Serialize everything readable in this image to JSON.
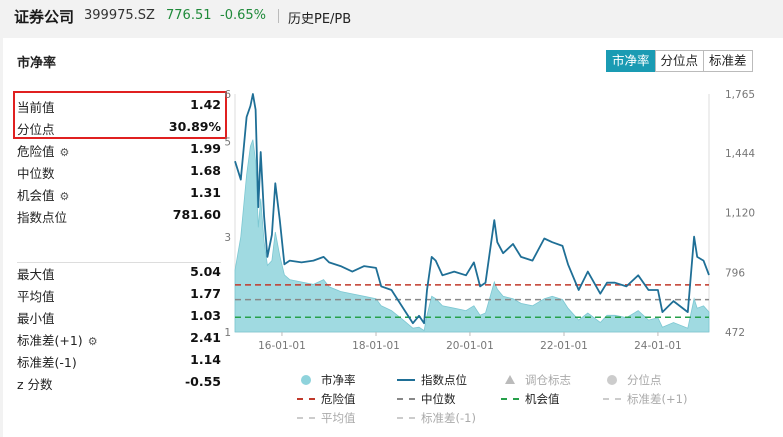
{
  "header": {
    "name": "证券公司",
    "code": "399975.SZ",
    "price": "776.51",
    "change": "-0.65%",
    "link": "历史PE/PB"
  },
  "card": {
    "title": "市净率",
    "tabs": [
      "市净率",
      "分位点",
      "标准差"
    ]
  },
  "stats": {
    "current_label": "当前值",
    "current_value": "1.42",
    "percentile_label": "分位点",
    "percentile_value": "30.89%",
    "danger_label": "危险值",
    "danger_value": "1.99",
    "median_label": "中位数",
    "median_value": "1.68",
    "chance_label": "机会值",
    "chance_value": "1.31",
    "index_label": "指数点位",
    "index_value": "781.60",
    "max_label": "最大值",
    "max_value": "5.04",
    "avg_label": "平均值",
    "avg_value": "1.77",
    "min_label": "最小值",
    "min_value": "1.03",
    "std_plus_label": "标准差(+1)",
    "std_plus_value": "2.41",
    "std_minus_label": "标准差(-1)",
    "std_minus_value": "1.14",
    "z_label": "z 分数",
    "z_value": "-0.55"
  },
  "legend": {
    "pb": "市净率",
    "index": "指数点位",
    "adjust": "调仓标志",
    "percentile": "分位点",
    "danger": "危险值",
    "median": "中位数",
    "chance": "机会值",
    "std_plus": "标准差(+1)",
    "avg": "平均值",
    "std_minus": "标准差(-1)"
  },
  "colors": {
    "accent": "#1a9bb3",
    "pb_fill": "#8fd3dc",
    "index_line": "#1f6f96",
    "danger": "#c0392b",
    "median": "#888888",
    "chance": "#27a04a",
    "price_down": "#1f8a3a",
    "highlight": "#e02020"
  },
  "chart_data": {
    "type": "area",
    "x_ticks": [
      "16-01-01",
      "18-01-01",
      "20-01-01",
      "22-01-01",
      "24-01-01"
    ],
    "left_axis_ticks": [
      "1",
      "3",
      "5",
      "6"
    ],
    "right_axis_ticks": [
      "472",
      "796",
      "1,120",
      "1,444",
      "1,765"
    ],
    "left_range": [
      1,
      6
    ],
    "right_range": [
      472,
      1765
    ],
    "pb_series": [
      [
        "15-01-01",
        2.3
      ],
      [
        "15-02-15",
        3.0
      ],
      [
        "15-04-01",
        4.3
      ],
      [
        "15-05-01",
        4.9
      ],
      [
        "15-05-20",
        5.04
      ],
      [
        "15-06-10",
        4.6
      ],
      [
        "15-07-01",
        3.2
      ],
      [
        "15-07-20",
        3.8
      ],
      [
        "15-08-15",
        2.9
      ],
      [
        "15-09-10",
        2.4
      ],
      [
        "15-10-15",
        2.5
      ],
      [
        "15-11-10",
        3.1
      ],
      [
        "15-12-15",
        2.6
      ],
      [
        "16-01-20",
        2.2
      ],
      [
        "16-03-01",
        2.1
      ],
      [
        "16-06-01",
        2.05
      ],
      [
        "16-09-01",
        2.0
      ],
      [
        "16-11-20",
        2.1
      ],
      [
        "17-01-01",
        1.95
      ],
      [
        "17-04-01",
        1.85
      ],
      [
        "17-07-01",
        1.8
      ],
      [
        "17-10-01",
        1.75
      ],
      [
        "18-01-01",
        1.7
      ],
      [
        "18-02-10",
        1.55
      ],
      [
        "18-05-01",
        1.45
      ],
      [
        "18-08-01",
        1.25
      ],
      [
        "18-10-15",
        1.08
      ],
      [
        "18-12-01",
        1.1
      ],
      [
        "19-01-10",
        1.03
      ],
      [
        "19-02-01",
        1.35
      ],
      [
        "19-03-10",
        1.75
      ],
      [
        "19-04-10",
        1.7
      ],
      [
        "19-06-01",
        1.55
      ],
      [
        "19-09-01",
        1.5
      ],
      [
        "19-12-01",
        1.45
      ],
      [
        "20-02-01",
        1.55
      ],
      [
        "20-03-20",
        1.35
      ],
      [
        "20-05-01",
        1.4
      ],
      [
        "20-07-08",
        2.05
      ],
      [
        "20-08-01",
        1.9
      ],
      [
        "20-09-15",
        1.75
      ],
      [
        "20-12-01",
        1.7
      ],
      [
        "21-02-01",
        1.6
      ],
      [
        "21-05-01",
        1.55
      ],
      [
        "21-08-01",
        1.7
      ],
      [
        "21-10-01",
        1.75
      ],
      [
        "21-12-20",
        1.68
      ],
      [
        "22-02-01",
        1.5
      ],
      [
        "22-04-25",
        1.25
      ],
      [
        "22-07-05",
        1.4
      ],
      [
        "22-10-10",
        1.2
      ],
      [
        "22-12-01",
        1.35
      ],
      [
        "23-02-01",
        1.35
      ],
      [
        "23-05-01",
        1.3
      ],
      [
        "23-08-01",
        1.45
      ],
      [
        "23-10-20",
        1.25
      ],
      [
        "24-01-01",
        1.3
      ],
      [
        "24-02-05",
        1.1
      ],
      [
        "24-05-01",
        1.2
      ],
      [
        "24-08-20",
        1.08
      ],
      [
        "24-10-08",
        1.7
      ],
      [
        "24-11-01",
        1.5
      ],
      [
        "24-12-20",
        1.55
      ],
      [
        "25-02-01",
        1.42
      ]
    ],
    "index_series": [
      [
        "15-01-01",
        1400
      ],
      [
        "15-02-15",
        1300
      ],
      [
        "15-04-01",
        1640
      ],
      [
        "15-05-01",
        1700
      ],
      [
        "15-05-20",
        1765
      ],
      [
        "15-06-10",
        1680
      ],
      [
        "15-07-01",
        1150
      ],
      [
        "15-07-20",
        1450
      ],
      [
        "15-08-15",
        1100
      ],
      [
        "15-09-10",
        880
      ],
      [
        "15-10-15",
        1000
      ],
      [
        "15-11-10",
        1280
      ],
      [
        "15-12-15",
        1080
      ],
      [
        "16-01-20",
        840
      ],
      [
        "16-03-01",
        860
      ],
      [
        "16-06-01",
        850
      ],
      [
        "16-09-01",
        860
      ],
      [
        "16-11-20",
        880
      ],
      [
        "17-01-01",
        850
      ],
      [
        "17-04-01",
        830
      ],
      [
        "17-07-01",
        800
      ],
      [
        "17-10-01",
        830
      ],
      [
        "18-01-01",
        820
      ],
      [
        "18-02-10",
        720
      ],
      [
        "18-05-01",
        700
      ],
      [
        "18-08-01",
        600
      ],
      [
        "18-10-15",
        520
      ],
      [
        "18-12-01",
        560
      ],
      [
        "19-01-10",
        520
      ],
      [
        "19-02-01",
        700
      ],
      [
        "19-03-10",
        880
      ],
      [
        "19-04-10",
        860
      ],
      [
        "19-06-01",
        780
      ],
      [
        "19-09-01",
        800
      ],
      [
        "19-12-01",
        780
      ],
      [
        "20-02-01",
        850
      ],
      [
        "20-03-20",
        720
      ],
      [
        "20-05-01",
        740
      ],
      [
        "20-07-08",
        1080
      ],
      [
        "20-08-01",
        960
      ],
      [
        "20-09-15",
        900
      ],
      [
        "20-12-01",
        950
      ],
      [
        "21-02-01",
        880
      ],
      [
        "21-05-01",
        860
      ],
      [
        "21-08-01",
        980
      ],
      [
        "21-10-01",
        960
      ],
      [
        "21-12-20",
        940
      ],
      [
        "22-02-01",
        840
      ],
      [
        "22-04-25",
        700
      ],
      [
        "22-07-05",
        800
      ],
      [
        "22-10-10",
        680
      ],
      [
        "22-12-01",
        740
      ],
      [
        "23-02-01",
        740
      ],
      [
        "23-05-01",
        720
      ],
      [
        "23-08-01",
        780
      ],
      [
        "23-10-20",
        700
      ],
      [
        "24-01-01",
        700
      ],
      [
        "24-02-05",
        580
      ],
      [
        "24-05-01",
        640
      ],
      [
        "24-08-20",
        580
      ],
      [
        "24-10-08",
        990
      ],
      [
        "24-11-01",
        880
      ],
      [
        "24-12-20",
        860
      ],
      [
        "25-02-01",
        781.6
      ]
    ],
    "lines": {
      "danger": 1.99,
      "median": 1.68,
      "chance": 1.31
    }
  }
}
